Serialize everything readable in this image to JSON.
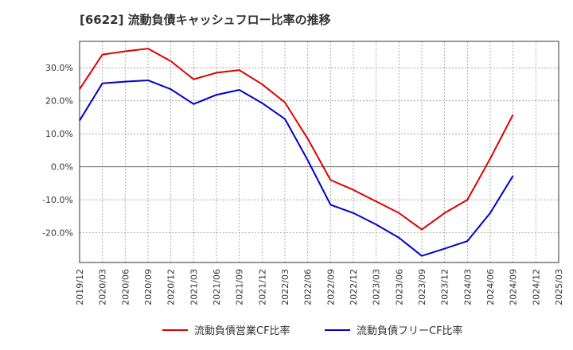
{
  "title": "[6622]  流動負債キャッシュフロー比率の推移",
  "colors": {
    "operating": "#dd0000",
    "free": "#0000cc",
    "grid": "#999999",
    "axis": "#333333"
  },
  "chart_data": {
    "type": "line",
    "title": "[6622]  流動負債キャッシュフロー比率の推移",
    "xlabel": "",
    "ylabel": "",
    "ylim": [
      -29,
      38
    ],
    "yticks": [
      30,
      20,
      10,
      0,
      -10,
      -20
    ],
    "ytick_labels": [
      "30.0%",
      "20.0%",
      "10.0%",
      "0.0%",
      "-10.0%",
      "-20.0%"
    ],
    "grid": true,
    "legend_position": "bottom",
    "x": [
      "2019/12",
      "2020/03",
      "2020/06",
      "2020/09",
      "2020/12",
      "2021/03",
      "2021/06",
      "2021/09",
      "2021/12",
      "2022/03",
      "2022/06",
      "2022/09",
      "2022/12",
      "2023/03",
      "2023/06",
      "2023/09",
      "2023/12",
      "2024/03",
      "2024/06",
      "2024/09",
      "2024/12",
      "2025/03"
    ],
    "series": [
      {
        "name": "流動負債営業CF比率",
        "color": "#dd0000",
        "values": [
          23.5,
          34.0,
          35.0,
          35.8,
          32.0,
          26.5,
          28.5,
          29.3,
          25.0,
          19.5,
          8.5,
          -4.0,
          -7.0,
          -10.5,
          -14.0,
          -19.0,
          -14.0,
          -10.0,
          2.5,
          15.8,
          null,
          null
        ]
      },
      {
        "name": "流動負債フリーCF比率",
        "color": "#0000cc",
        "values": [
          14.0,
          25.3,
          25.8,
          26.2,
          23.5,
          19.0,
          21.8,
          23.3,
          19.3,
          14.5,
          2.0,
          -11.5,
          -14.0,
          -17.5,
          -21.5,
          -27.0,
          -24.8,
          -22.5,
          -14.0,
          -2.7,
          null,
          null
        ]
      }
    ]
  }
}
